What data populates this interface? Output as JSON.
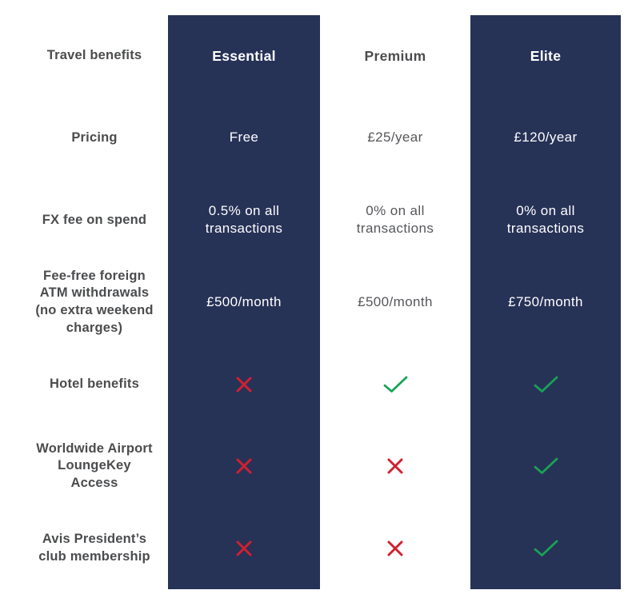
{
  "table": {
    "header": {
      "label": "Travel benefits",
      "columns": [
        "Essential",
        "Premium",
        "Elite"
      ]
    },
    "rows": [
      {
        "label": "Pricing",
        "values": [
          "Free",
          "£25/year",
          "£120/year"
        ]
      },
      {
        "label": "FX fee on spend",
        "values": [
          "0.5% on all transactions",
          "0% on all transactions",
          "0% on all transactions"
        ]
      },
      {
        "label": "Fee-free foreign ATM withdrawals (no extra weekend charges)",
        "values": [
          "£500/month",
          "£500/month",
          "£750/month"
        ]
      },
      {
        "label": "Hotel benefits",
        "values": [
          "cross",
          "check",
          "check"
        ]
      },
      {
        "label": "Worldwide Airport LoungeKey Access",
        "values": [
          "cross",
          "cross",
          "check"
        ]
      },
      {
        "label": "Avis President’s club membership",
        "values": [
          "cross",
          "cross",
          "check"
        ]
      }
    ],
    "colors": {
      "navy": "#273257",
      "label_text": "#4b4c4e",
      "value_text_on_white": "#56575a",
      "check_green": "#18a355",
      "cross_red": "#d1202f"
    }
  }
}
